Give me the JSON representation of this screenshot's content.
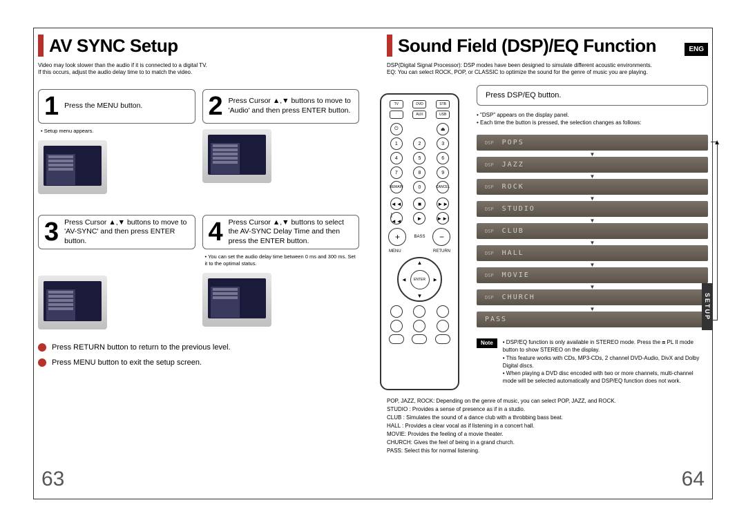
{
  "left": {
    "title": "AV SYNC Setup",
    "subtitle_line1": "Video may look slower than the audio if it is connected to a digital TV.",
    "subtitle_line2": "If this occurs, adjust the audio delay time to to match the video.",
    "steps": {
      "s1": {
        "num": "1",
        "text": "Press the MENU button.",
        "note": "• Setup menu appears."
      },
      "s2": {
        "num": "2",
        "text": "Press Cursor ▲,▼ buttons to move to 'Audio' and then press ENTER button."
      },
      "s3": {
        "num": "3",
        "text": "Press Cursor ▲,▼ buttons to move to 'AV-SYNC' and then press ENTER button."
      },
      "s4": {
        "num": "4",
        "text": "Press Cursor ▲,▼ buttons to select the AV-SYNC Delay Time and then press the ENTER button.",
        "note": "• You can set the audio delay time between 0 ms and 300 ms. Set it to the optimal status."
      }
    },
    "action1": "Press RETURN button to return to the previous level.",
    "action2": "Press MENU button to exit the setup screen.",
    "page_num": "63"
  },
  "right": {
    "title": "Sound Field (DSP)/EQ Function",
    "eng_badge": "ENG",
    "subtitle_line1": "DSP(Digital Signal Processor): DSP modes have been designed to simulate different acoustic environments.",
    "subtitle_line2": "EQ: You can select ROCK, POP, or CLASSIC to optimize the sound for the genre of music you are playing.",
    "dsp_step": "Press DSP/EQ button.",
    "dsp_bullets": {
      "b1": "• \"DSP\" appears on the display panel.",
      "b2": "• Each time the button is pressed, the selection changes as follows:"
    },
    "eq_modes": [
      "POPS",
      "JAZZ",
      "ROCK",
      "STUDIO",
      "CLUB",
      "HALL",
      "MOVIE",
      "CHURCH",
      "PASS"
    ],
    "eq_prefix": "DSP",
    "note_label": "Note",
    "notes": {
      "n1": "• DSP/EQ function is only available in STEREO mode. Press the ⧈ PL II mode button to show STEREO on the display.",
      "n2": "• This feature works with CDs, MP3-CDs, 2 channel DVD-Audio, DivX and Dolby Digital discs.",
      "n3": "• When playing a DVD disc encoded with two or more channels, multi-channel mode will be selected automatically and DSP/EQ function does not work."
    },
    "glossary": {
      "g1": "POP, JAZZ, ROCK: Depending on the genre of music, you can select POP, JAZZ, and ROCK.",
      "g2": "STUDIO : Provides a sense of presence as if in a studio.",
      "g3": "CLUB : Simulates the sound of a dance club with a throbbing bass beat.",
      "g4": "HALL : Provides a clear vocal as if listening in a concert hall.",
      "g5": "MOVIE: Provides the feeling of a movie theater.",
      "g6": "CHURCH: Gives the feel of being in a grand church.",
      "g7": "PASS: Select this for normal listening."
    },
    "page_num": "64",
    "setup_tab": "SETUP"
  },
  "remote": {
    "labels": {
      "menu": "MENU",
      "return": "RETURN",
      "enter": "ENTER",
      "tv": "TV",
      "dvd": "DVD",
      "stb": "STB",
      "aux": "AUX",
      "usb": "USB",
      "power": "POWER",
      "open": "OPEN/CLOSE",
      "bass": "BASS"
    }
  }
}
